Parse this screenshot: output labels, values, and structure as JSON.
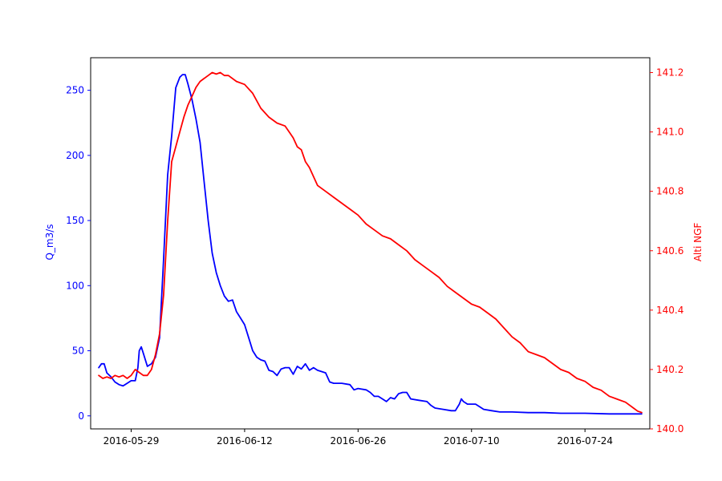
{
  "chart_data": {
    "type": "line",
    "title": "",
    "xlabel": "",
    "ylabel_left": "Q_m3/s",
    "ylabel_right": "Alti NGF",
    "grid": false,
    "legend": "none",
    "x_range": [
      "2016-05-24",
      "2016-08-01"
    ],
    "x_ticks": [
      "2016-05-29",
      "2016-06-12",
      "2016-06-26",
      "2016-07-10",
      "2016-07-24"
    ],
    "y_left_range": [
      -10,
      275
    ],
    "y_left_ticks": [
      0,
      50,
      100,
      150,
      200,
      250
    ],
    "y_right_range": [
      140.0,
      141.25
    ],
    "y_right_ticks": [
      "140.0",
      "140.2",
      "140.4",
      "140.6",
      "140.8",
      "141.0",
      "141.2"
    ],
    "series": [
      {
        "name": "Q_m3/s",
        "axis": "left",
        "color": "#0000ff",
        "points": [
          [
            "2016-05-25T00",
            37
          ],
          [
            "2016-05-25T08",
            40
          ],
          [
            "2016-05-25T16",
            40
          ],
          [
            "2016-05-26T00",
            33
          ],
          [
            "2016-05-26T12",
            30
          ],
          [
            "2016-05-27T00",
            26
          ],
          [
            "2016-05-27T12",
            24
          ],
          [
            "2016-05-28T00",
            23
          ],
          [
            "2016-05-28T12",
            25
          ],
          [
            "2016-05-29T00",
            27
          ],
          [
            "2016-05-29T12",
            27
          ],
          [
            "2016-05-29T20",
            37
          ],
          [
            "2016-05-30T00",
            50
          ],
          [
            "2016-05-30T06",
            53
          ],
          [
            "2016-05-30T12",
            48
          ],
          [
            "2016-05-31T00",
            38
          ],
          [
            "2016-05-31T12",
            40
          ],
          [
            "2016-06-01T00",
            45
          ],
          [
            "2016-06-01T12",
            60
          ],
          [
            "2016-06-02T00",
            120
          ],
          [
            "2016-06-02T12",
            185
          ],
          [
            "2016-06-03T00",
            215
          ],
          [
            "2016-06-03T12",
            252
          ],
          [
            "2016-06-04T00",
            260
          ],
          [
            "2016-06-04T08",
            262
          ],
          [
            "2016-06-04T16",
            262
          ],
          [
            "2016-06-05T00",
            255
          ],
          [
            "2016-06-05T12",
            243
          ],
          [
            "2016-06-06T00",
            228
          ],
          [
            "2016-06-06T12",
            210
          ],
          [
            "2016-06-07T00",
            180
          ],
          [
            "2016-06-07T12",
            150
          ],
          [
            "2016-06-08T00",
            125
          ],
          [
            "2016-06-08T12",
            110
          ],
          [
            "2016-06-09T00",
            100
          ],
          [
            "2016-06-09T12",
            92
          ],
          [
            "2016-06-10T00",
            88
          ],
          [
            "2016-06-10T12",
            89
          ],
          [
            "2016-06-11T00",
            80
          ],
          [
            "2016-06-11T12",
            75
          ],
          [
            "2016-06-12T00",
            70
          ],
          [
            "2016-06-12T12",
            60
          ],
          [
            "2016-06-13T00",
            50
          ],
          [
            "2016-06-13T12",
            45
          ],
          [
            "2016-06-14T00",
            43
          ],
          [
            "2016-06-14T12",
            42
          ],
          [
            "2016-06-15T00",
            35
          ],
          [
            "2016-06-15T12",
            34
          ],
          [
            "2016-06-16T00",
            31
          ],
          [
            "2016-06-16T12",
            36
          ],
          [
            "2016-06-17T00",
            37
          ],
          [
            "2016-06-17T12",
            37
          ],
          [
            "2016-06-18T00",
            32
          ],
          [
            "2016-06-18T12",
            38
          ],
          [
            "2016-06-19T00",
            36
          ],
          [
            "2016-06-19T12",
            40
          ],
          [
            "2016-06-20T00",
            35
          ],
          [
            "2016-06-20T12",
            37
          ],
          [
            "2016-06-21T00",
            35
          ],
          [
            "2016-06-21T12",
            34
          ],
          [
            "2016-06-22T00",
            33
          ],
          [
            "2016-06-22T12",
            26
          ],
          [
            "2016-06-23T00",
            25
          ],
          [
            "2016-06-24T00",
            25
          ],
          [
            "2016-06-25T00",
            24
          ],
          [
            "2016-06-25T12",
            20
          ],
          [
            "2016-06-26T00",
            21
          ],
          [
            "2016-06-27T00",
            20
          ],
          [
            "2016-06-27T12",
            18
          ],
          [
            "2016-06-28T00",
            15
          ],
          [
            "2016-06-28T12",
            15
          ],
          [
            "2016-06-29T00",
            13
          ],
          [
            "2016-06-29T12",
            11
          ],
          [
            "2016-06-30T00",
            14
          ],
          [
            "2016-06-30T12",
            13
          ],
          [
            "2016-07-01T00",
            17
          ],
          [
            "2016-07-01T12",
            18
          ],
          [
            "2016-07-02T00",
            18
          ],
          [
            "2016-07-02T12",
            13
          ],
          [
            "2016-07-03T12",
            12
          ],
          [
            "2016-07-04T12",
            11
          ],
          [
            "2016-07-05T00",
            8
          ],
          [
            "2016-07-05T12",
            6
          ],
          [
            "2016-07-06T12",
            5
          ],
          [
            "2016-07-07T12",
            4
          ],
          [
            "2016-07-08T00",
            4
          ],
          [
            "2016-07-08T12",
            9
          ],
          [
            "2016-07-08T18",
            13
          ],
          [
            "2016-07-09T00",
            11
          ],
          [
            "2016-07-09T12",
            9
          ],
          [
            "2016-07-10T12",
            9
          ],
          [
            "2016-07-11T00",
            7
          ],
          [
            "2016-07-11T12",
            5
          ],
          [
            "2016-07-12T12",
            4
          ],
          [
            "2016-07-13T12",
            3
          ],
          [
            "2016-07-15T00",
            3
          ],
          [
            "2016-07-17T00",
            2.5
          ],
          [
            "2016-07-19T00",
            2.5
          ],
          [
            "2016-07-21T00",
            2
          ],
          [
            "2016-07-24T00",
            2
          ],
          [
            "2016-07-27T00",
            1.5
          ],
          [
            "2016-07-30T00",
            1.5
          ],
          [
            "2016-07-31T00",
            1.5
          ]
        ]
      },
      {
        "name": "Alti NGF",
        "axis": "right",
        "color": "#ff0000",
        "points": [
          [
            "2016-05-25T00",
            140.18
          ],
          [
            "2016-05-25T12",
            140.17
          ],
          [
            "2016-05-26T00",
            140.175
          ],
          [
            "2016-05-26T12",
            140.17
          ],
          [
            "2016-05-27T00",
            140.18
          ],
          [
            "2016-05-27T12",
            140.175
          ],
          [
            "2016-05-28T00",
            140.18
          ],
          [
            "2016-05-28T12",
            140.17
          ],
          [
            "2016-05-29T00",
            140.18
          ],
          [
            "2016-05-29T12",
            140.2
          ],
          [
            "2016-05-30T00",
            140.19
          ],
          [
            "2016-05-30T12",
            140.18
          ],
          [
            "2016-05-31T00",
            140.18
          ],
          [
            "2016-05-31T12",
            140.2
          ],
          [
            "2016-06-01T00",
            140.25
          ],
          [
            "2016-06-01T12",
            140.32
          ],
          [
            "2016-06-02T00",
            140.45
          ],
          [
            "2016-06-02T12",
            140.7
          ],
          [
            "2016-06-03T00",
            140.9
          ],
          [
            "2016-06-03T12",
            140.95
          ],
          [
            "2016-06-04T00",
            141.0
          ],
          [
            "2016-06-04T12",
            141.05
          ],
          [
            "2016-06-05T00",
            141.09
          ],
          [
            "2016-06-05T12",
            141.12
          ],
          [
            "2016-06-06T00",
            141.15
          ],
          [
            "2016-06-06T12",
            141.17
          ],
          [
            "2016-06-07T00",
            141.18
          ],
          [
            "2016-06-07T12",
            141.19
          ],
          [
            "2016-06-08T00",
            141.2
          ],
          [
            "2016-06-08T12",
            141.195
          ],
          [
            "2016-06-09T00",
            141.2
          ],
          [
            "2016-06-09T12",
            141.19
          ],
          [
            "2016-06-10T00",
            141.19
          ],
          [
            "2016-06-11T00",
            141.17
          ],
          [
            "2016-06-12T00",
            141.16
          ],
          [
            "2016-06-13T00",
            141.13
          ],
          [
            "2016-06-14T00",
            141.08
          ],
          [
            "2016-06-15T00",
            141.05
          ],
          [
            "2016-06-16T00",
            141.03
          ],
          [
            "2016-06-17T00",
            141.02
          ],
          [
            "2016-06-17T12",
            141.0
          ],
          [
            "2016-06-18T00",
            140.98
          ],
          [
            "2016-06-18T12",
            140.95
          ],
          [
            "2016-06-19T00",
            140.94
          ],
          [
            "2016-06-19T12",
            140.9
          ],
          [
            "2016-06-20T00",
            140.88
          ],
          [
            "2016-06-20T12",
            140.85
          ],
          [
            "2016-06-21T00",
            140.82
          ],
          [
            "2016-06-22T00",
            140.8
          ],
          [
            "2016-06-23T00",
            140.78
          ],
          [
            "2016-06-24T00",
            140.76
          ],
          [
            "2016-06-25T00",
            140.74
          ],
          [
            "2016-06-26T00",
            140.72
          ],
          [
            "2016-06-27T00",
            140.69
          ],
          [
            "2016-06-28T00",
            140.67
          ],
          [
            "2016-06-29T00",
            140.65
          ],
          [
            "2016-06-30T00",
            140.64
          ],
          [
            "2016-07-01T00",
            140.62
          ],
          [
            "2016-07-02T00",
            140.6
          ],
          [
            "2016-07-03T00",
            140.57
          ],
          [
            "2016-07-04T00",
            140.55
          ],
          [
            "2016-07-05T00",
            140.53
          ],
          [
            "2016-07-06T00",
            140.51
          ],
          [
            "2016-07-07T00",
            140.48
          ],
          [
            "2016-07-08T00",
            140.46
          ],
          [
            "2016-07-09T00",
            140.44
          ],
          [
            "2016-07-10T00",
            140.42
          ],
          [
            "2016-07-11T00",
            140.41
          ],
          [
            "2016-07-12T00",
            140.39
          ],
          [
            "2016-07-13T00",
            140.37
          ],
          [
            "2016-07-14T00",
            140.34
          ],
          [
            "2016-07-15T00",
            140.31
          ],
          [
            "2016-07-16T00",
            140.29
          ],
          [
            "2016-07-17T00",
            140.26
          ],
          [
            "2016-07-18T00",
            140.25
          ],
          [
            "2016-07-19T00",
            140.24
          ],
          [
            "2016-07-20T00",
            140.22
          ],
          [
            "2016-07-21T00",
            140.2
          ],
          [
            "2016-07-22T00",
            140.19
          ],
          [
            "2016-07-23T00",
            140.17
          ],
          [
            "2016-07-24T00",
            140.16
          ],
          [
            "2016-07-25T00",
            140.14
          ],
          [
            "2016-07-26T00",
            140.13
          ],
          [
            "2016-07-27T00",
            140.11
          ],
          [
            "2016-07-28T00",
            140.1
          ],
          [
            "2016-07-29T00",
            140.09
          ],
          [
            "2016-07-30T00",
            140.07
          ],
          [
            "2016-07-30T12",
            140.06
          ],
          [
            "2016-07-31T00",
            140.055
          ]
        ]
      }
    ]
  }
}
